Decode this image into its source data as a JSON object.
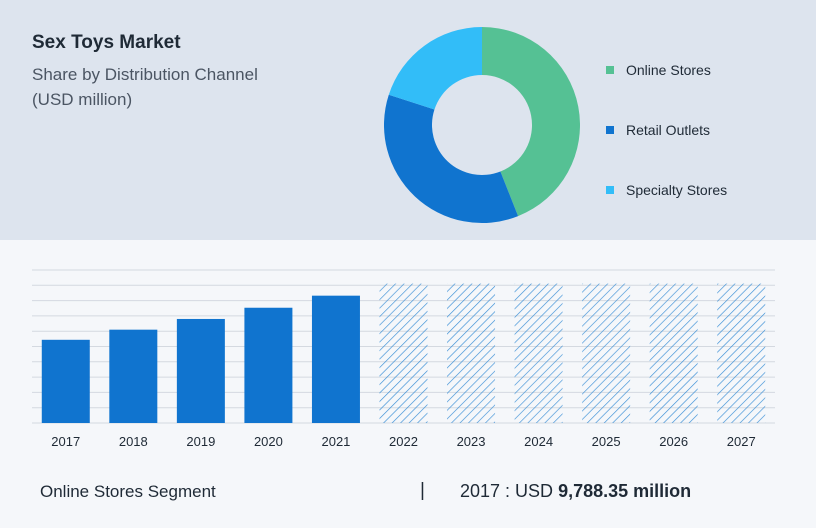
{
  "header": {
    "title": "Sex Toys Market",
    "subtitle_line1": "Share by Distribution Channel",
    "subtitle_line2": "(USD million)"
  },
  "colors": {
    "online": "#55c194",
    "retail": "#1074cf",
    "specialty": "#32bdf8",
    "bar": "#1074cf",
    "forecast_hatch": "#3a8fd6"
  },
  "chart_data": [
    {
      "type": "pie",
      "donut": true,
      "labels": [
        "Online Stores",
        "Retail Outlets",
        "Specialty Stores"
      ],
      "values": [
        44,
        36,
        20
      ],
      "legend_position": "right"
    },
    {
      "type": "bar",
      "categories": [
        "2017",
        "2018",
        "2019",
        "2020",
        "2021",
        "2022",
        "2023",
        "2024",
        "2025",
        "2026",
        "2027"
      ],
      "values": [
        9788.35,
        10980,
        12240,
        13560,
        14980,
        16400,
        16400,
        16400,
        16400,
        16400,
        16400
      ],
      "forecast_from": "2022",
      "ylim": [
        0,
        18000
      ],
      "grid": true,
      "y_axis_labels_visible": false
    }
  ],
  "footer": {
    "segment_label": "Online Stores Segment",
    "divider": "|",
    "value_prefix": "2017 : USD ",
    "value_bold": "9,788.35 million"
  }
}
